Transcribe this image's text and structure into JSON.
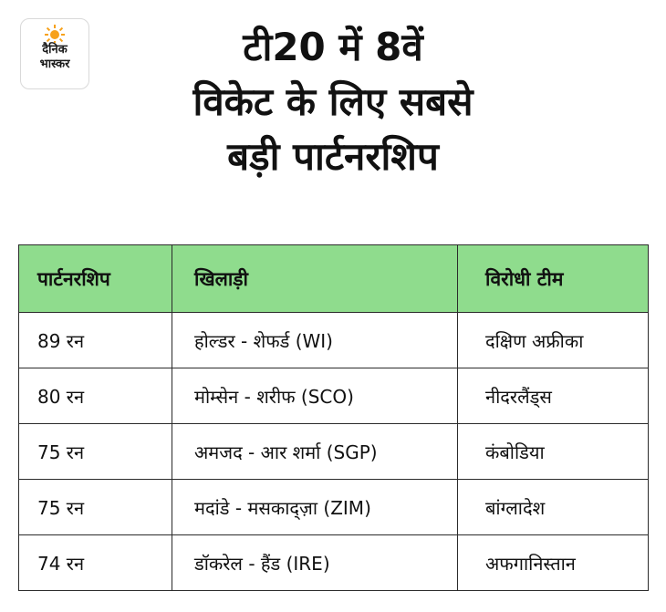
{
  "logo": {
    "line1": "दैनिक",
    "line2": "भास्कर",
    "sun_color": "#f7a11a"
  },
  "title": {
    "line1": "टी20 में 8वें",
    "line2": "विकेट के लिए सबसे",
    "line3": "बड़ी पार्टनरशिप"
  },
  "table": {
    "header_color": "#8fdc8d",
    "columns": [
      "पार्टनरशिप",
      "खिलाड़ी",
      "विरोधी टीम"
    ],
    "rows": [
      [
        "89 रन",
        "होल्डर - शेफर्ड (WI)",
        "दक्षिण अफ्रीका"
      ],
      [
        "80 रन",
        "मोम्सेन - शरीफ (SCO)",
        "नीदरलैंड्स"
      ],
      [
        "75 रन",
        "अमजद - आर शर्मा (SGP)",
        "कंबोडिया"
      ],
      [
        "75 रन",
        "मदांडे - मसकाद्ज़ा (ZIM)",
        "बांग्लादेश"
      ],
      [
        "74 रन",
        "डॉकरेल - हैंड (IRE)",
        "अफगानिस्तान"
      ]
    ]
  }
}
